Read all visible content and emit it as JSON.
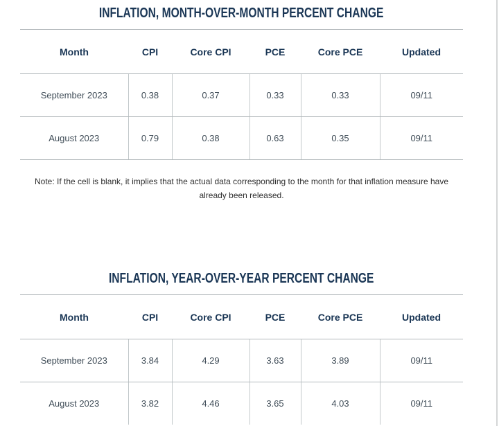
{
  "colors": {
    "accent_navy": "#1a3655",
    "body_text": "#3f4c57",
    "rule_gray": "#b2b8bb",
    "cell_divider_gray": "#c2c8ca",
    "note_text": "#2f2f2f",
    "page_edge_gray": "#d4d6d7",
    "background": "#ffffff"
  },
  "chart_data": [
    {
      "type": "table",
      "title": "INFLATION, MONTH-OVER-MONTH PERCENT CHANGE",
      "columns": [
        "Month",
        "CPI",
        "Core CPI",
        "PCE",
        "Core PCE",
        "Updated"
      ],
      "rows": [
        [
          "September 2023",
          "0.38",
          "0.37",
          "0.33",
          "0.33",
          "09/11"
        ],
        [
          "August 2023",
          "0.79",
          "0.38",
          "0.63",
          "0.35",
          "09/11"
        ]
      ],
      "note": "Note: If the cell is blank, it implies that the actual data corresponding to the month for that inflation measure have already been released."
    },
    {
      "type": "table",
      "title": "INFLATION, YEAR-OVER-YEAR PERCENT CHANGE",
      "columns": [
        "Month",
        "CPI",
        "Core CPI",
        "PCE",
        "Core PCE",
        "Updated"
      ],
      "rows": [
        [
          "September 2023",
          "3.84",
          "4.29",
          "3.63",
          "3.89",
          "09/11"
        ],
        [
          "August 2023",
          "3.82",
          "4.46",
          "3.65",
          "4.03",
          "09/11"
        ]
      ]
    }
  ]
}
